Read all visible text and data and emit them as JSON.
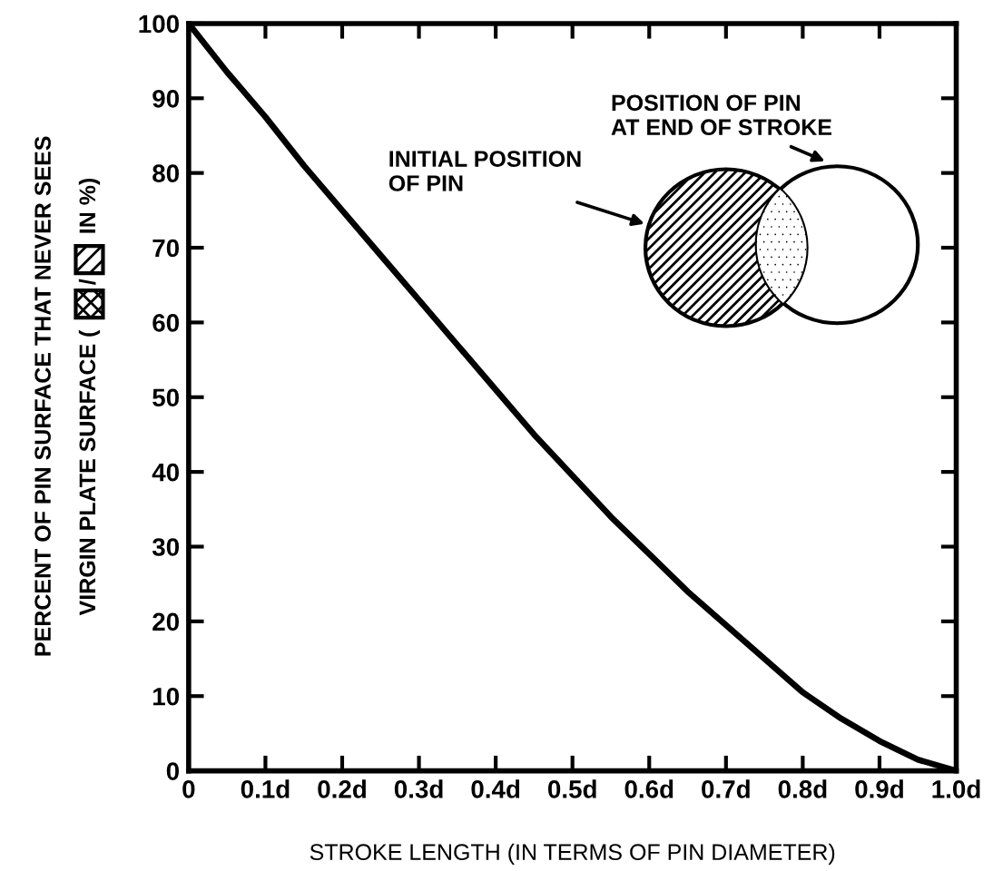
{
  "chart_data": {
    "type": "line",
    "xlabel": "STROKE LENGTH (IN TERMS OF PIN DIAMETER)",
    "ylabel": "PERCENT OF PIN SURFACE THAT NEVER SEES\nVIRGIN PLATE SURFACE ( / IN %)",
    "x": [
      0,
      0.05,
      0.1,
      0.15,
      0.2,
      0.25,
      0.3,
      0.35,
      0.4,
      0.45,
      0.5,
      0.55,
      0.6,
      0.65,
      0.7,
      0.75,
      0.8,
      0.85,
      0.9,
      0.95,
      1.0
    ],
    "series": [
      {
        "color": "#000000",
        "values": [
          100,
          93.5,
          87.5,
          81,
          75,
          69,
          63,
          57,
          51,
          45,
          39.5,
          34,
          29,
          24,
          19.5,
          15,
          10.5,
          7,
          4,
          1.5,
          0
        ]
      }
    ],
    "xlim": [
      0,
      1.0
    ],
    "ylim": [
      0,
      100
    ],
    "xticks": [
      0,
      {
        "value": 0.1,
        "label": "0.1d"
      },
      {
        "value": 0.2,
        "label": "0.2d"
      },
      {
        "value": 0.3,
        "label": "0.3d"
      },
      {
        "value": 0.4,
        "label": "0.4d"
      },
      {
        "value": 0.5,
        "label": "0.5d"
      },
      {
        "value": 0.6,
        "label": "0.6d"
      },
      {
        "value": 0.7,
        "label": "0.7d"
      },
      {
        "value": 0.8,
        "label": "0.8d"
      },
      {
        "value": 0.9,
        "label": "0.9d"
      },
      {
        "value": 1.0,
        "label": "1.0d"
      }
    ],
    "yticks": [
      0,
      10,
      20,
      30,
      40,
      50,
      60,
      70,
      80,
      90,
      100
    ],
    "annotations": [
      "POSITION OF PIN\nAT END OF STROKE",
      "INITIAL POSITION\nOF PIN"
    ],
    "grid": false,
    "legend": false,
    "marker": "none",
    "line_style": "solid"
  }
}
